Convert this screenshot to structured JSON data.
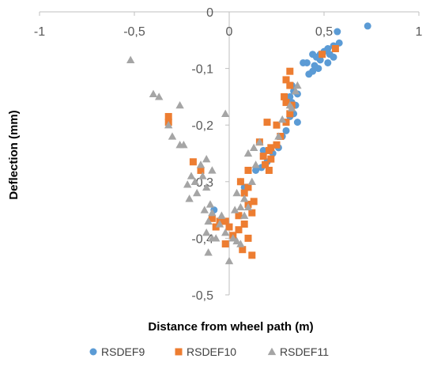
{
  "chart_data": {
    "type": "scatter",
    "xlabel": "Distance from wheel path (m)",
    "ylabel": "Deflection (mm)",
    "xlim": [
      -1,
      1
    ],
    "ylim": [
      -0.5,
      0
    ],
    "xticks": [
      -1,
      -0.5,
      0,
      0.5,
      1
    ],
    "xtick_labels": [
      "-1",
      "-0,5",
      "0",
      "0,5",
      "1"
    ],
    "yticks": [
      0,
      -0.1,
      -0.2,
      -0.3,
      -0.4,
      -0.5
    ],
    "ytick_labels": [
      "0",
      "-0,1",
      "-0,2",
      "-0,3",
      "-0,4",
      "-0,5"
    ],
    "grid": false,
    "legend_position": "bottom",
    "series": [
      {
        "name": "RSDEF9",
        "color": "#5B9BD5",
        "marker": "circle",
        "points": [
          [
            0.73,
            -0.025
          ],
          [
            0.57,
            -0.035
          ],
          [
            0.58,
            -0.055
          ],
          [
            0.55,
            -0.06
          ],
          [
            0.52,
            -0.065
          ],
          [
            0.5,
            -0.07
          ],
          [
            0.53,
            -0.075
          ],
          [
            0.55,
            -0.08
          ],
          [
            0.48,
            -0.075
          ],
          [
            0.46,
            -0.08
          ],
          [
            0.44,
            -0.075
          ],
          [
            0.48,
            -0.085
          ],
          [
            0.52,
            -0.09
          ],
          [
            0.45,
            -0.095
          ],
          [
            0.47,
            -0.1
          ],
          [
            0.44,
            -0.105
          ],
          [
            0.42,
            -0.11
          ],
          [
            0.41,
            -0.09
          ],
          [
            0.39,
            -0.09
          ],
          [
            0.33,
            -0.13
          ],
          [
            0.34,
            -0.14
          ],
          [
            0.36,
            -0.145
          ],
          [
            0.32,
            -0.15
          ],
          [
            0.33,
            -0.16
          ],
          [
            0.35,
            -0.165
          ],
          [
            0.34,
            -0.18
          ],
          [
            0.32,
            -0.185
          ],
          [
            0.36,
            -0.195
          ],
          [
            0.3,
            -0.21
          ],
          [
            0.28,
            -0.22
          ],
          [
            0.26,
            -0.24
          ],
          [
            0.23,
            -0.25
          ],
          [
            0.2,
            -0.265
          ],
          [
            0.18,
            -0.245
          ],
          [
            0.17,
            -0.275
          ],
          [
            0.14,
            -0.28
          ],
          [
            0.06,
            -0.3
          ],
          [
            0.08,
            -0.31
          ],
          [
            -0.08,
            -0.35
          ]
        ]
      },
      {
        "name": "RSDEF10",
        "color": "#ED7D31",
        "marker": "square",
        "points": [
          [
            0.56,
            -0.065
          ],
          [
            0.49,
            -0.075
          ],
          [
            0.32,
            -0.105
          ],
          [
            0.3,
            -0.12
          ],
          [
            0.32,
            -0.13
          ],
          [
            0.29,
            -0.15
          ],
          [
            0.3,
            -0.16
          ],
          [
            0.33,
            -0.165
          ],
          [
            0.32,
            -0.18
          ],
          [
            0.3,
            -0.195
          ],
          [
            0.25,
            -0.2
          ],
          [
            0.2,
            -0.195
          ],
          [
            0.27,
            -0.22
          ],
          [
            0.25,
            -0.235
          ],
          [
            0.22,
            -0.24
          ],
          [
            0.21,
            -0.245
          ],
          [
            0.16,
            -0.23
          ],
          [
            0.18,
            -0.255
          ],
          [
            0.22,
            -0.26
          ],
          [
            0.19,
            -0.27
          ],
          [
            0.21,
            -0.28
          ],
          [
            0.1,
            -0.28
          ],
          [
            0.06,
            -0.3
          ],
          [
            0.1,
            -0.31
          ],
          [
            0.08,
            -0.32
          ],
          [
            0.13,
            -0.335
          ],
          [
            0.1,
            -0.34
          ],
          [
            0.05,
            -0.36
          ],
          [
            0.12,
            -0.355
          ],
          [
            0.08,
            -0.375
          ],
          [
            0.05,
            -0.385
          ],
          [
            0.02,
            -0.395
          ],
          [
            0.0,
            -0.38
          ],
          [
            -0.02,
            -0.37
          ],
          [
            -0.05,
            -0.37
          ],
          [
            -0.07,
            -0.38
          ],
          [
            -0.09,
            -0.365
          ],
          [
            0.1,
            -0.4
          ],
          [
            -0.02,
            -0.41
          ],
          [
            0.07,
            -0.42
          ],
          [
            0.12,
            -0.43
          ],
          [
            -0.15,
            -0.28
          ],
          [
            -0.19,
            -0.265
          ],
          [
            -0.32,
            -0.185
          ],
          [
            -0.32,
            -0.195
          ]
        ]
      },
      {
        "name": "RSDEF11",
        "color": "#A5A5A5",
        "marker": "triangle",
        "points": [
          [
            -0.52,
            -0.085
          ],
          [
            -0.4,
            -0.145
          ],
          [
            -0.37,
            -0.15
          ],
          [
            -0.26,
            -0.165
          ],
          [
            -0.32,
            -0.2
          ],
          [
            -0.3,
            -0.22
          ],
          [
            -0.26,
            -0.235
          ],
          [
            -0.24,
            -0.235
          ],
          [
            -0.02,
            -0.18
          ],
          [
            -0.12,
            -0.26
          ],
          [
            -0.15,
            -0.27
          ],
          [
            -0.09,
            -0.28
          ],
          [
            -0.14,
            -0.29
          ],
          [
            -0.18,
            -0.3
          ],
          [
            -0.22,
            -0.305
          ],
          [
            -0.12,
            -0.31
          ],
          [
            -0.17,
            -0.32
          ],
          [
            -0.21,
            -0.33
          ],
          [
            -0.1,
            -0.34
          ],
          [
            -0.13,
            -0.35
          ],
          [
            -0.09,
            -0.355
          ],
          [
            -0.11,
            -0.37
          ],
          [
            -0.05,
            -0.375
          ],
          [
            -0.12,
            -0.39
          ],
          [
            -0.09,
            -0.4
          ],
          [
            -0.02,
            -0.39
          ],
          [
            0.02,
            -0.4
          ],
          [
            0.04,
            -0.405
          ],
          [
            0.06,
            -0.41
          ],
          [
            0.0,
            -0.44
          ],
          [
            -0.11,
            -0.425
          ],
          [
            0.13,
            -0.24
          ],
          [
            0.16,
            -0.23
          ],
          [
            0.1,
            -0.25
          ],
          [
            0.26,
            -0.22
          ],
          [
            0.28,
            -0.19
          ],
          [
            0.33,
            -0.17
          ],
          [
            0.32,
            -0.165
          ],
          [
            0.35,
            -0.14
          ],
          [
            0.36,
            -0.13
          ],
          [
            0.08,
            -0.33
          ],
          [
            0.1,
            -0.345
          ],
          [
            0.06,
            -0.345
          ],
          [
            0.04,
            -0.32
          ],
          [
            0.03,
            -0.35
          ],
          [
            0.12,
            -0.3
          ],
          [
            0.14,
            -0.27
          ],
          [
            0.08,
            -0.36
          ],
          [
            -0.07,
            -0.4
          ],
          [
            -0.04,
            -0.36
          ],
          [
            -0.2,
            -0.29
          ]
        ]
      }
    ]
  }
}
